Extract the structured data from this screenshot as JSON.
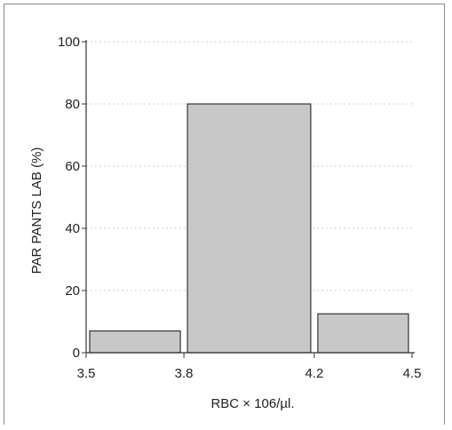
{
  "chart_data": {
    "type": "bar",
    "title": "",
    "xlabel": "RBC × 106/µl.",
    "ylabel": "PAR   PANTS LAB (%)",
    "bins": [
      {
        "from": 3.5,
        "to": 3.8,
        "value": 7
      },
      {
        "from": 3.8,
        "to": 4.2,
        "value": 80
      },
      {
        "from": 4.2,
        "to": 4.5,
        "value": 12.5
      }
    ],
    "x_ticks": [
      "3.5",
      "3.8",
      "4.2",
      "4.5"
    ],
    "y_ticks": [
      0,
      20,
      40,
      60,
      80,
      100
    ],
    "xlim": [
      3.5,
      4.5
    ],
    "ylim": [
      0,
      100
    ],
    "grid": "horizontal dotted",
    "colors": {
      "bar": "#c8c8c8",
      "bar_edge": "#333333",
      "axis": "#333333"
    }
  }
}
